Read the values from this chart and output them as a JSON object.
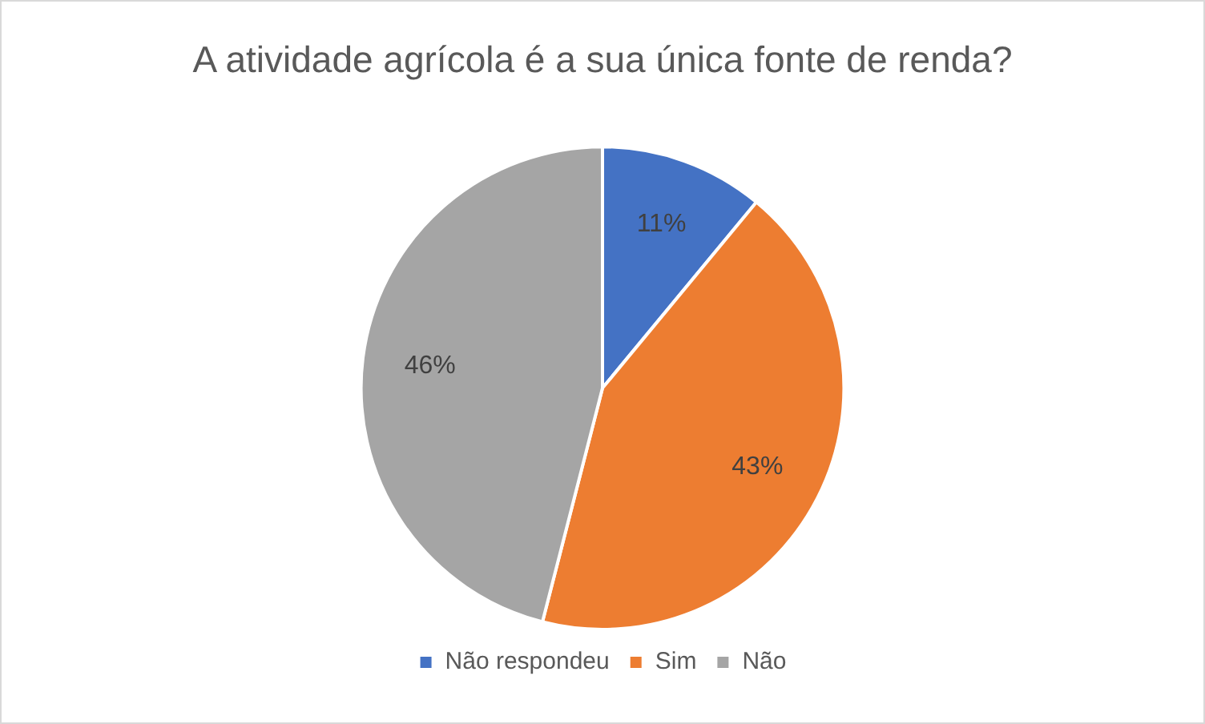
{
  "chart_data": {
    "type": "pie",
    "title": "A atividade agrícola é a sua única fonte de renda?",
    "categories": [
      "Não respondeu",
      "Sim",
      "Não"
    ],
    "values": [
      11,
      43,
      46
    ],
    "colors": [
      "#4472c4",
      "#ed7d31",
      "#a5a5a5"
    ],
    "value_labels": [
      "11%",
      "43%",
      "46%"
    ],
    "legend": "bottom"
  }
}
